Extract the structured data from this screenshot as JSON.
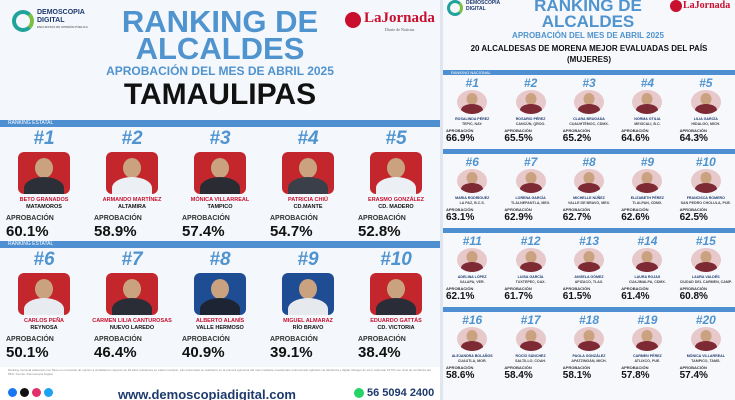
{
  "left": {
    "brand_line1": "DEMOSCOPIA",
    "brand_line2": "DIGITAL",
    "brand_tag": "ENCUESTAS DE OPINIÓN PÚBLICA",
    "partner": "LaJornada",
    "partner_tag": "Diario de Noticias",
    "title1": "RANKING DE",
    "title2": "ALCALDES",
    "subtitle": "APROBACIÓN DEL MES DE ABRIL 2025",
    "state": "TAMAULIPAS",
    "band_label": "RANKING ESTATAL",
    "ap_label": "APROBACIÓN",
    "items": [
      {
        "rank": "#1",
        "name": "BETO GRANADOS",
        "muni": "MATAMOROS",
        "pct": "60.1%",
        "bg": "#c4262e",
        "dress": "#2c2e38"
      },
      {
        "rank": "#2",
        "name": "ARMANDO MARTÍNEZ",
        "muni": "ALTAMIRA",
        "pct": "58.9%",
        "bg": "#c4262e",
        "dress": "#eceff3"
      },
      {
        "rank": "#3",
        "name": "MÓNICA VILLARREAL",
        "muni": "TAMPICO",
        "pct": "57.4%",
        "bg": "#c4262e",
        "dress": "#2b2b33"
      },
      {
        "rank": "#4",
        "name": "PATRICIA CHIÚ",
        "muni": "CD.MANTE",
        "pct": "54.7%",
        "bg": "#c4262e",
        "dress": "#3a3f4a"
      },
      {
        "rank": "#5",
        "name": "ERASMO GONZÁLEZ",
        "muni": "CD. MADERO",
        "pct": "52.8%",
        "bg": "#c4262e",
        "dress": "#eceff3"
      },
      {
        "rank": "#6",
        "name": "CARLOS PEÑA",
        "muni": "REYNOSA",
        "pct": "50.1%",
        "bg": "#c4262e",
        "dress": "#e8ebef"
      },
      {
        "rank": "#7",
        "name": "CARMEN LILIA CANTUROSAS",
        "muni": "NUEVO LAREDO",
        "pct": "46.4%",
        "bg": "#c4262e",
        "dress": "#2a2c36"
      },
      {
        "rank": "#8",
        "name": "ALBERTO ALANÍS",
        "muni": "VALLE HERMOSO",
        "pct": "40.9%",
        "bg": "#1f4d94",
        "dress": "#1d2433"
      },
      {
        "rank": "#9",
        "name": "MIGUEL ALMARAZ",
        "muni": "RÍO BRAVO",
        "pct": "39.1%",
        "bg": "#1f4d94",
        "dress": "#e6e9ee"
      },
      {
        "rank": "#10",
        "name": "EDUARDO GATTÁS",
        "muni": "CD. VICTORIA",
        "pct": "38.4%",
        "bg": "#c4262e",
        "dress": "#2a2d38"
      }
    ],
    "footnote": "Ranking mensual elaborado con base en encuestas de opinión a ciudadanos mayores de 18 años residentes en cada municipio. Las entrevistas se realizaron en la primera quincena del mes mediante cuestionario estructurado aplicado vía telefónica y digital. Margen de error estimado ±3.5% con nivel de confianza del 95%. Fuente: Demoscopia Digital.",
    "url": "www.demoscopiadigital.com",
    "phone": "56 5094 2400"
  },
  "right": {
    "title1": "RANKING DE",
    "title2": "ALCALDES",
    "partner": "LaJornada",
    "subtitle": "APROBACIÓN DEL MES DE ABRIL 2025",
    "heading1": "20 ALCALDESAS DE MORENA MEJOR EVALUADAS DEL PAÍS",
    "heading2": "(MUJERES)",
    "band_label": "RANKING NACIONAL",
    "items": [
      {
        "rank": "#1",
        "name": "ROSALINDA PÉREZ",
        "muni": "TEPIC, NAY.",
        "pct": "66.9%"
      },
      {
        "rank": "#2",
        "name": "ROSARIO PÉREZ",
        "muni": "CANCÚN, QROO.",
        "pct": "65.5%"
      },
      {
        "rank": "#3",
        "name": "CLARA BRUGADA",
        "muni": "CUAUHTÉMOC, CDMX.",
        "pct": "65.2%"
      },
      {
        "rank": "#4",
        "name": "NORMA OTILIA",
        "muni": "MEXICALI, B.C.",
        "pct": "64.6%"
      },
      {
        "rank": "#5",
        "name": "LILIA GARCÍA",
        "muni": "HIDALGO, MICH.",
        "pct": "64.3%"
      },
      {
        "rank": "#6",
        "name": "MARIA RODRÍGUEZ",
        "muni": "LA PAZ, B.C.S.",
        "pct": "63.1%"
      },
      {
        "rank": "#7",
        "name": "LORENA GARCÍA",
        "muni": "TLALNEPANTLA, MEX.",
        "pct": "62.9%"
      },
      {
        "rank": "#8",
        "name": "MICHELLE NÚÑEZ",
        "muni": "VALLE DE BRAVO, MEX.",
        "pct": "62.7%"
      },
      {
        "rank": "#9",
        "name": "ELIZABETH PÉREZ",
        "muni": "TLALPAN, CDMX.",
        "pct": "62.6%"
      },
      {
        "rank": "#10",
        "name": "FRANCISCA ROMERO",
        "muni": "SAN PEDRO CHOLULA, PUE.",
        "pct": "62.5%"
      },
      {
        "rank": "#11",
        "name": "ADELINA LÓPEZ",
        "muni": "XALAPA, VER.",
        "pct": "62.1%"
      },
      {
        "rank": "#12",
        "name": "LUISA GARCÍA",
        "muni": "TUXTEPEC, OAX.",
        "pct": "61.7%"
      },
      {
        "rank": "#13",
        "name": "ANGELA GÓMEZ",
        "muni": "APIZACO, TLAX.",
        "pct": "61.5%"
      },
      {
        "rank": "#14",
        "name": "LAURA ROJAS",
        "muni": "CUAJIMALPA, CDMX.",
        "pct": "61.4%"
      },
      {
        "rank": "#15",
        "name": "LAURA VALDÉS",
        "muni": "CIUDAD DEL CARMEN, CAMP.",
        "pct": "60.8%"
      },
      {
        "rank": "#16",
        "name": "ALEJANDRA BOLAÑOS",
        "muni": "CUAUTLA, MOR.",
        "pct": "58.6%"
      },
      {
        "rank": "#17",
        "name": "ROCÍO SÁNCHEZ",
        "muni": "SALTILLO, COAH.",
        "pct": "58.4%"
      },
      {
        "rank": "#18",
        "name": "PAOLA GONZÁLEZ",
        "muni": "APATZINGÁN, MICH.",
        "pct": "58.1%"
      },
      {
        "rank": "#19",
        "name": "CARMEN PÉREZ",
        "muni": "ATLIXCO, PUE.",
        "pct": "57.8%"
      },
      {
        "rank": "#20",
        "name": "MÓNICA VILLARREAL",
        "muni": "TAMPICO, TAMS.",
        "pct": "57.4%"
      }
    ]
  }
}
